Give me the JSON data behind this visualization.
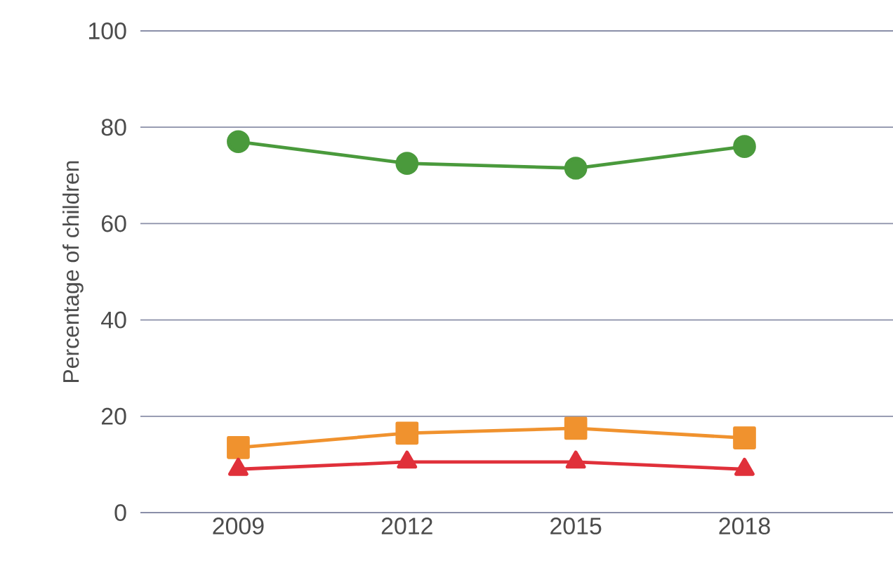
{
  "chart_data": {
    "type": "line",
    "ylabel": "Percentage of children",
    "categories": [
      "2009",
      "2012",
      "2015",
      "2018"
    ],
    "series": [
      {
        "color": "#4a9a3c",
        "marker": "circle",
        "values": [
          77,
          72.5,
          71.5,
          76
        ]
      },
      {
        "color": "#f0922e",
        "marker": "square",
        "values": [
          13.5,
          16.5,
          17.5,
          15.5
        ]
      },
      {
        "color": "#e0303a",
        "marker": "triangle",
        "values": [
          9,
          10.5,
          10.5,
          9
        ]
      }
    ],
    "ylim": [
      0,
      100
    ],
    "yticks": [
      0,
      20,
      40,
      60,
      80,
      100
    ],
    "grid": "y"
  }
}
